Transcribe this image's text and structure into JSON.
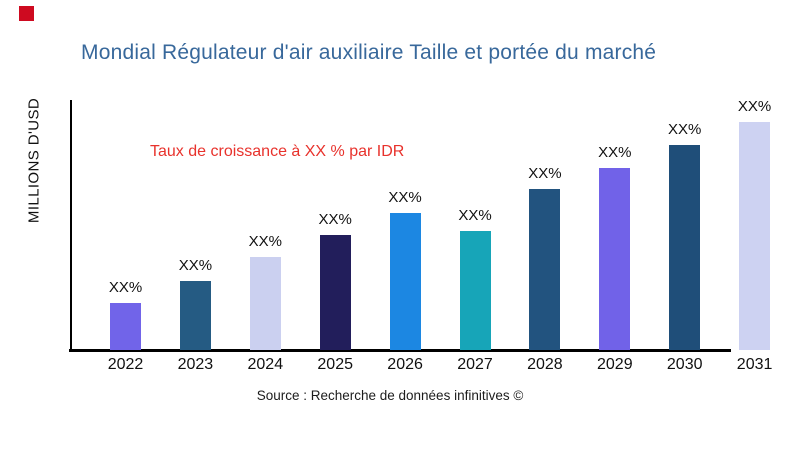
{
  "brand": {
    "mark_color": "#CE0A20"
  },
  "header": {
    "title": "Mondial Régulateur d'air auxiliaire Taille et portée du marché",
    "title_color": "#38689B"
  },
  "annotations": {
    "growth_note": "Taux de croissance à XX % par IDR",
    "growth_note_color": "#E8322C"
  },
  "footer": {
    "source": "Source : Recherche de données infinitives ©"
  },
  "chart_data": {
    "type": "bar",
    "title": "Mondial Régulateur d'air auxiliaire Taille et portée du marché",
    "xlabel": "",
    "ylabel": "MILLIONS D'USD",
    "categories": [
      "2022",
      "2023",
      "2024",
      "2025",
      "2026",
      "2027",
      "2028",
      "2029",
      "2030",
      "2031"
    ],
    "values": [
      47,
      69,
      93,
      115,
      137,
      119,
      161,
      182,
      205,
      228
    ],
    "value_labels": [
      "XX%",
      "XX%",
      "XX%",
      "XX%",
      "XX%",
      "XX%",
      "XX%",
      "XX%",
      "XX%",
      "XX%"
    ],
    "bar_colors": [
      "#7164E9",
      "#255B83",
      "#CBD0F0",
      "#221E5B",
      "#1C87E2",
      "#17A5B8",
      "#22537F",
      "#7162E8",
      "#1F4E79",
      "#CDD2F2"
    ],
    "ylim": [
      0,
      250
    ],
    "grid": false,
    "legend": null,
    "annotation": "Taux de croissance à XX % par IDR"
  }
}
